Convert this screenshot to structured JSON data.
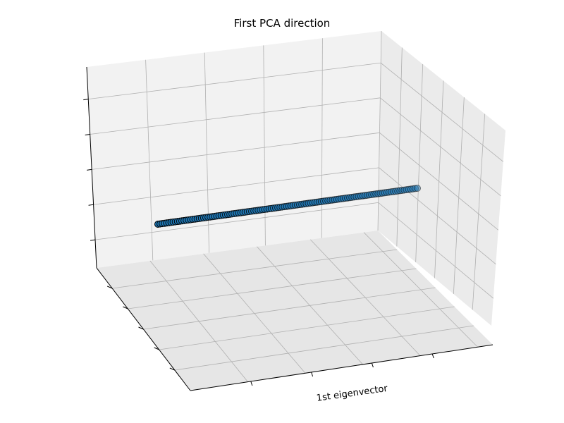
{
  "chart_data": {
    "type": "scatter",
    "projection": "3d",
    "title": "First PCA direction",
    "xlabel": "1st eigenvector",
    "ylabel": "",
    "zlabel": "",
    "grid": true,
    "tick_labels_visible": false,
    "point_count": 120,
    "series": [
      {
        "marker_color": "#1f77b4",
        "marker_edge_color": "#000000",
        "points_along_first_component": {
          "from": 0.0,
          "to": 1.0
        }
      }
    ]
  }
}
